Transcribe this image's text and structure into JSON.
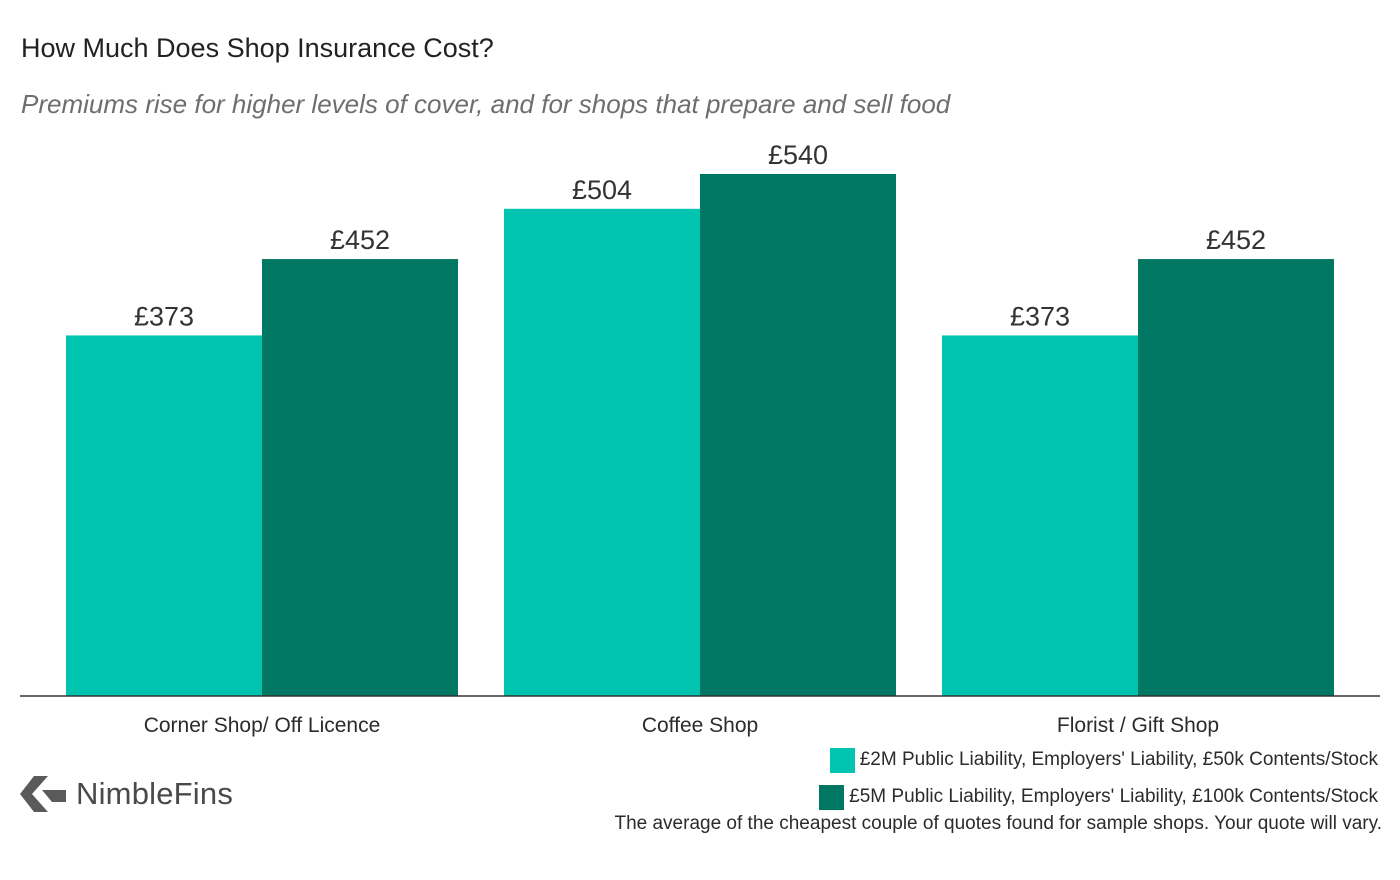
{
  "title": "How Much Does Shop Insurance Cost?",
  "subtitle": "Premiums rise for higher levels of cover, and for shops that prepare and sell food",
  "colors": {
    "series1": "#00c4b0",
    "series2": "#007762",
    "axis": "#333333"
  },
  "chart_data": {
    "type": "bar",
    "categories": [
      "Corner Shop/ Off Licence",
      "Coffee Shop",
      "Florist / Gift Shop"
    ],
    "series": [
      {
        "name": "£2M Public Liability, Employers' Liability, £50k Contents/Stock",
        "values": [
          373,
          504,
          373
        ],
        "labels": [
          "£373",
          "£504",
          "£373"
        ]
      },
      {
        "name": "£5M Public Liability, Employers' Liability, £100k Contents/Stock",
        "values": [
          452,
          540,
          452
        ],
        "labels": [
          "£452",
          "£540",
          "£452"
        ]
      }
    ],
    "ylim": [
      0,
      540
    ],
    "grid": false,
    "legend_position": "bottom-right"
  },
  "footnote": "The average of the cheapest couple of quotes found for sample shops. Your quote will vary.",
  "logo": {
    "text": "NimbleFins",
    "icon": "chevron-left-icon"
  }
}
